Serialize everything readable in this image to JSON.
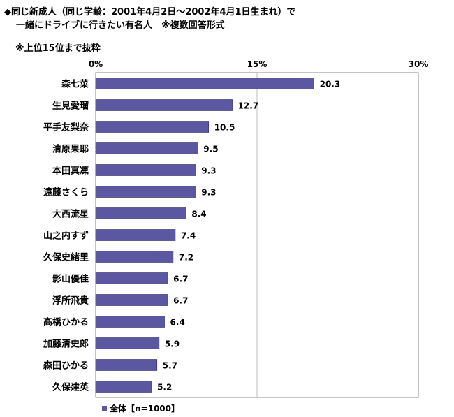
{
  "title_line1": "◆同じ新成人（同じ学齢：2001年4月2日～2002年4月1日生まれ）で",
  "title_line2": "一緒にドライブに行きたい有名人　※複数回答形式",
  "note": "※上位15位まで抜粋",
  "colors": {
    "bar": "#5b57a0",
    "bar_edge": "#2e2b66",
    "grid": "#bdbdbd",
    "frame": "#888888"
  },
  "chart_data": {
    "type": "bar",
    "orientation": "horizontal",
    "categories": [
      "森七菜",
      "生見愛瑠",
      "平手友梨奈",
      "清原果耶",
      "本田真凜",
      "遠藤さくら",
      "大西流星",
      "山之内すず",
      "久保史緒里",
      "影山優佳",
      "浮所飛貴",
      "髙橋ひかる",
      "加藤清史郎",
      "森田ひかる",
      "久保建英"
    ],
    "series": [
      {
        "name": "全体【n=1000】",
        "values": [
          20.3,
          12.7,
          10.5,
          9.5,
          9.3,
          9.3,
          8.4,
          7.4,
          7.2,
          6.7,
          6.7,
          6.4,
          5.9,
          5.7,
          5.2
        ]
      }
    ],
    "xlim": [
      0,
      30
    ],
    "ticks": [
      0,
      15,
      30
    ],
    "tick_labels": [
      "0%",
      "15%",
      "30%"
    ],
    "value_labels": [
      "20.3",
      "12.7",
      "10.5",
      "9.5",
      "9.3",
      "9.3",
      "8.4",
      "7.4",
      "7.2",
      "6.7",
      "6.7",
      "6.4",
      "5.9",
      "5.7",
      "5.2"
    ],
    "grid": true,
    "legend_position": "bottom-left"
  }
}
